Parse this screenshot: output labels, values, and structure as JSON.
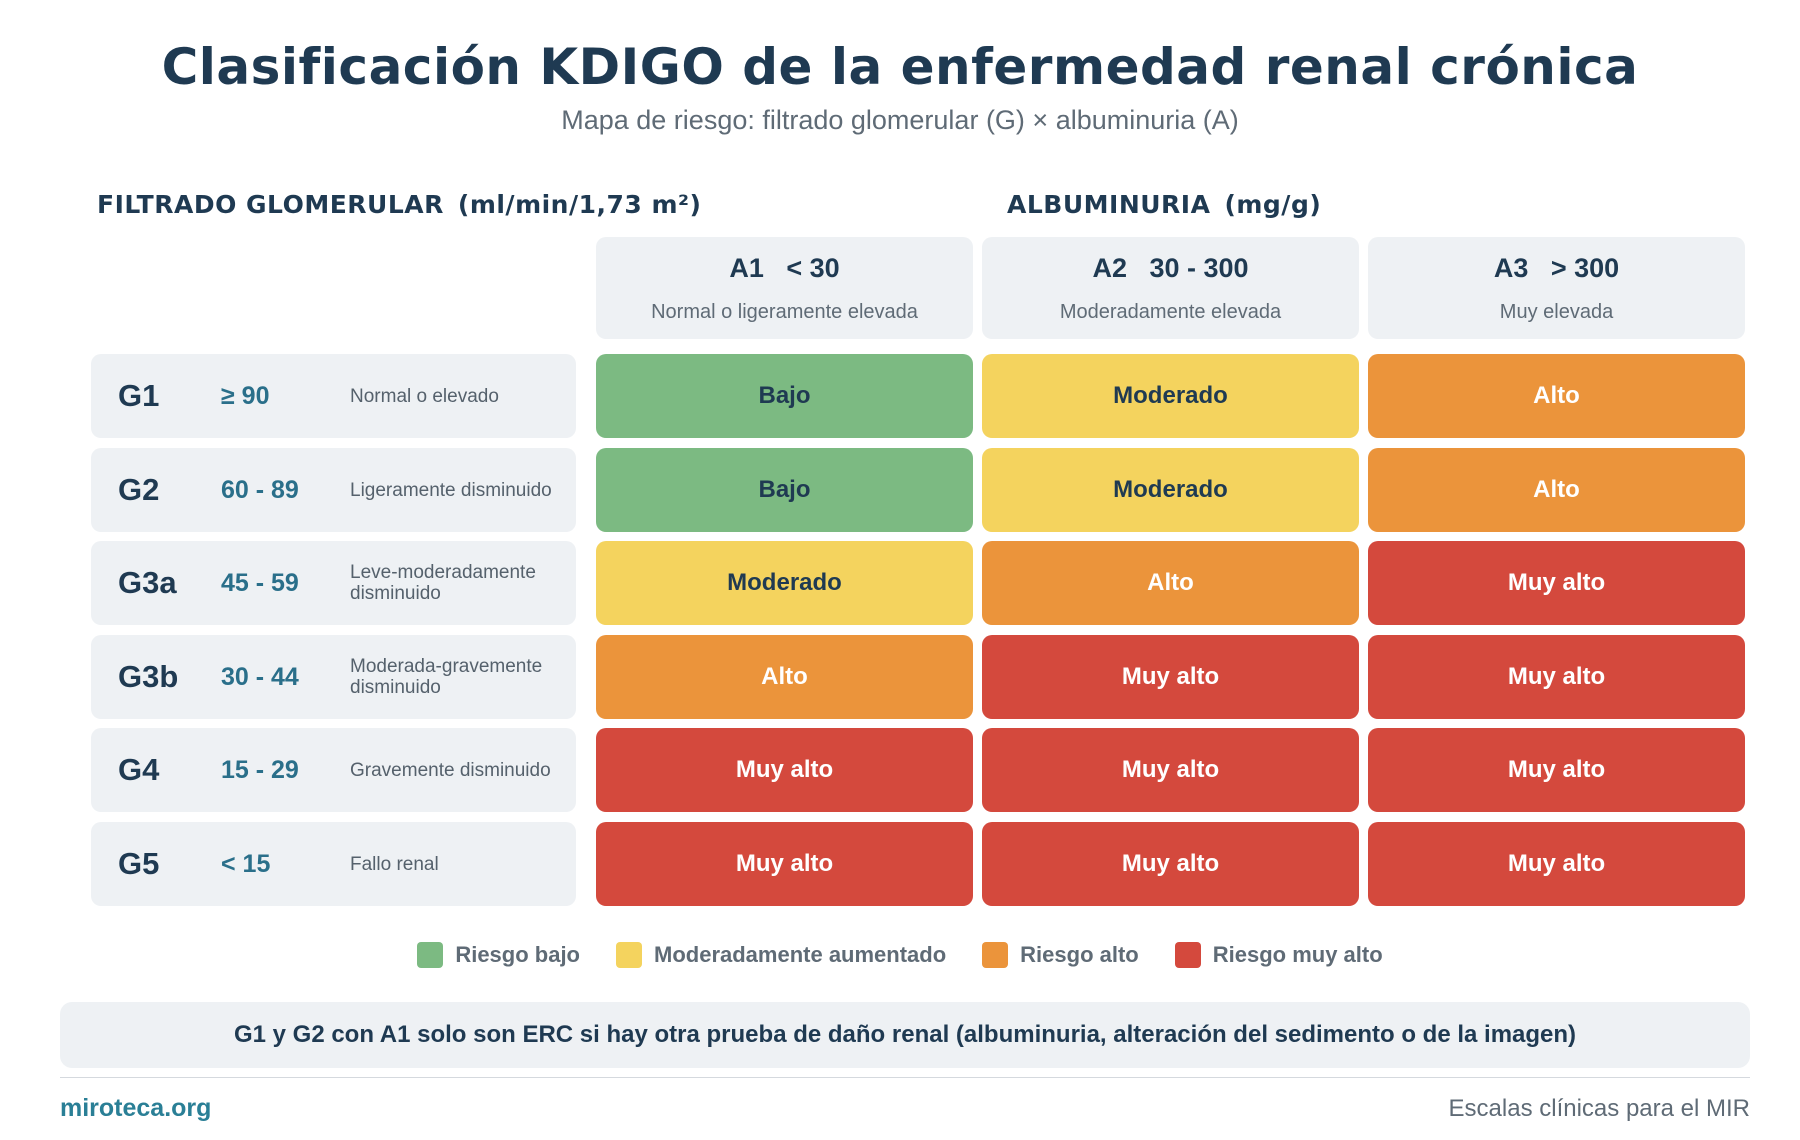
{
  "header": {
    "title": "Clasificación KDIGO de la enfermedad renal crónica",
    "subtitle": "Mapa de riesgo: filtrado glomerular (G) × albuminuria (A)"
  },
  "sections": {
    "gfr_label": "FILTRADO GLOMERULAR",
    "gfr_unit": "(ml/min/1,73 m²)",
    "alb_label": "ALBUMINURIA",
    "alb_unit": "(mg/g)"
  },
  "colors": {
    "low": "#7cba82",
    "moderate": "#f4d35e",
    "high": "#eb943b",
    "very_high": "#d4493d"
  },
  "columns": [
    {
      "code": "A1   < 30",
      "desc": "Normal o ligeramente elevada"
    },
    {
      "code": "A2   30 - 300",
      "desc": "Moderadamente elevada"
    },
    {
      "code": "A3   > 300",
      "desc": "Muy elevada"
    }
  ],
  "rows": [
    {
      "code": "G1",
      "range": "≥ 90",
      "desc": "Normal o elevado"
    },
    {
      "code": "G2",
      "range": "60 - 89",
      "desc": "Ligeramente disminuido"
    },
    {
      "code": "G3a",
      "range": "45 - 59",
      "desc": "Leve-moderadamente disminuido"
    },
    {
      "code": "G3b",
      "range": "30 - 44",
      "desc": "Moderada-gravemente disminuido"
    },
    {
      "code": "G4",
      "range": "15 - 29",
      "desc": "Gravemente disminuido"
    },
    {
      "code": "G5",
      "range": "< 15",
      "desc": "Fallo renal"
    }
  ],
  "risk_labels": {
    "low": "Bajo",
    "moderate": "Moderado",
    "high": "Alto",
    "very_high": "Muy alto"
  },
  "matrix": [
    [
      "low",
      "moderate",
      "high"
    ],
    [
      "low",
      "moderate",
      "high"
    ],
    [
      "moderate",
      "high",
      "very_high"
    ],
    [
      "high",
      "very_high",
      "very_high"
    ],
    [
      "very_high",
      "very_high",
      "very_high"
    ],
    [
      "very_high",
      "very_high",
      "very_high"
    ]
  ],
  "legend": [
    {
      "level": "low",
      "label": "Riesgo bajo"
    },
    {
      "level": "moderate",
      "label": "Moderadamente aumentado"
    },
    {
      "level": "high",
      "label": "Riesgo alto"
    },
    {
      "level": "very_high",
      "label": "Riesgo muy alto"
    }
  ],
  "note": "G1 y G2 con A1 solo son ERC si hay otra prueba de daño renal (albuminuria, alteración del sedimento o de la imagen)",
  "footer": {
    "site": "miroteca.org",
    "tagline": "Escalas clínicas para el MIR"
  }
}
